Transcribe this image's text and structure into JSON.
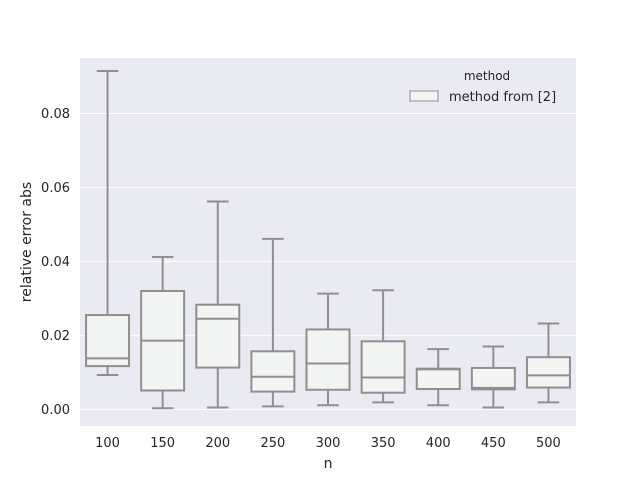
{
  "chart_data": {
    "type": "box",
    "xlabel": "n",
    "ylabel": "relative error abs",
    "categories": [
      "100",
      "150",
      "200",
      "250",
      "300",
      "350",
      "400",
      "450",
      "500"
    ],
    "ylim": [
      -0.0045,
      0.095
    ],
    "yticks": [
      0.0,
      0.02,
      0.04,
      0.06,
      0.08
    ],
    "ytick_labels": [
      "0.00",
      "0.02",
      "0.04",
      "0.06",
      "0.08"
    ],
    "grid": true,
    "legend": {
      "title": "method",
      "placement": "top-right",
      "entries": [
        "method from [2]"
      ]
    },
    "series": [
      {
        "name": "method from [2]",
        "boxes": [
          {
            "min": 0.0093,
            "q1": 0.0117,
            "median": 0.0138,
            "q3": 0.0255,
            "max": 0.0915
          },
          {
            "min": 0.0003,
            "q1": 0.0051,
            "median": 0.0186,
            "q3": 0.032,
            "max": 0.0412
          },
          {
            "min": 0.0005,
            "q1": 0.0113,
            "median": 0.0245,
            "q3": 0.0283,
            "max": 0.0562
          },
          {
            "min": 0.0008,
            "q1": 0.0048,
            "median": 0.0088,
            "q3": 0.0157,
            "max": 0.0461
          },
          {
            "min": 0.0011,
            "q1": 0.0053,
            "median": 0.0124,
            "q3": 0.0216,
            "max": 0.0313
          },
          {
            "min": 0.0019,
            "q1": 0.0045,
            "median": 0.0086,
            "q3": 0.0184,
            "max": 0.0322
          },
          {
            "min": 0.0011,
            "q1": 0.0055,
            "median": 0.0108,
            "q3": 0.011,
            "max": 0.0163
          },
          {
            "min": 0.0005,
            "q1": 0.0054,
            "median": 0.0058,
            "q3": 0.0112,
            "max": 0.017
          },
          {
            "min": 0.0019,
            "q1": 0.0059,
            "median": 0.0092,
            "q3": 0.0141,
            "max": 0.0232
          }
        ]
      }
    ],
    "colors": {
      "plot_background": "#eaeaf2",
      "grid": "#ffffff",
      "box_fill": "#f3f5f4",
      "box_edge": "#8f8f8f",
      "text": "#262626"
    }
  }
}
